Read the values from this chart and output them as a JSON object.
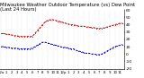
{
  "title": "Milwaukee Weather Outdoor Temperature (vs) Dew Point (Last 24 Hours)",
  "title_fontsize": 3.8,
  "background_color": "#ffffff",
  "grid_color": "#bbbbbb",
  "temp_color": "#cc0000",
  "dew_color": "#0000cc",
  "ylim": [
    -20,
    60
  ],
  "yticks": [
    -20,
    -10,
    0,
    10,
    20,
    30,
    40,
    50,
    60
  ],
  "ytick_labels": [
    "-20",
    "-10",
    "0",
    "10",
    "20",
    "30",
    "40",
    "50",
    "60"
  ],
  "ytick_fontsize": 3.2,
  "xtick_fontsize": 2.8,
  "num_points": 48,
  "temp_values": [
    28,
    28,
    27,
    27,
    26,
    25,
    25,
    24,
    24,
    24,
    24,
    24,
    24,
    28,
    32,
    36,
    40,
    44,
    46,
    47,
    47,
    46,
    45,
    44,
    43,
    42,
    41,
    40,
    40,
    39,
    38,
    38,
    38,
    37,
    37,
    36,
    36,
    35,
    35,
    35,
    36,
    37,
    38,
    39,
    40,
    41,
    42,
    42
  ],
  "dew_values": [
    10,
    10,
    9,
    9,
    8,
    8,
    8,
    7,
    7,
    7,
    7,
    7,
    8,
    10,
    12,
    14,
    16,
    16,
    15,
    14,
    13,
    12,
    11,
    10,
    9,
    9,
    8,
    7,
    7,
    5,
    4,
    3,
    2,
    1,
    1,
    0,
    0,
    -1,
    -1,
    0,
    2,
    4,
    6,
    8,
    10,
    11,
    12,
    13
  ],
  "xtick_labels": [
    "12a",
    "",
    "1",
    "",
    "2",
    "",
    "3",
    "",
    "4",
    "",
    "5",
    "",
    "6",
    "",
    "7",
    "",
    "8",
    "",
    "9",
    "",
    "10",
    "",
    "11",
    "",
    "12p",
    "",
    "1",
    "",
    "2",
    "",
    "3",
    "",
    "4",
    "",
    "5",
    "",
    "6",
    "",
    "7",
    "",
    "8",
    "",
    "9",
    "",
    "10",
    "",
    "11",
    ""
  ],
  "fig_width": 1.6,
  "fig_height": 0.87,
  "dpi": 100
}
